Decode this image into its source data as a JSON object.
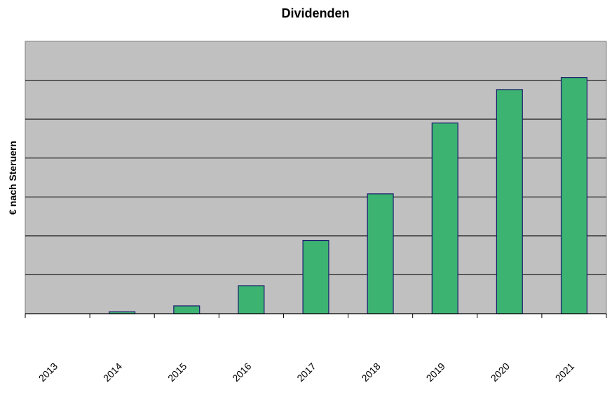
{
  "chart_data": {
    "type": "bar",
    "title": "Dividenden",
    "xlabel": "",
    "ylabel": "€ nach Steruern",
    "categories": [
      "2013",
      "2014",
      "2015",
      "2016",
      "2017",
      "2018",
      "2019",
      "2020",
      "2021"
    ],
    "values": [
      0,
      0.05,
      0.2,
      0.72,
      1.88,
      3.08,
      4.9,
      5.76,
      6.07
    ],
    "ylim": [
      0,
      7
    ],
    "grid": true,
    "legend": "none",
    "colors": {
      "bar_fill": "#3cb371",
      "bar_stroke": "#1a1a6e",
      "plot_bg": "#c0c0c0",
      "grid": "#000000"
    }
  }
}
